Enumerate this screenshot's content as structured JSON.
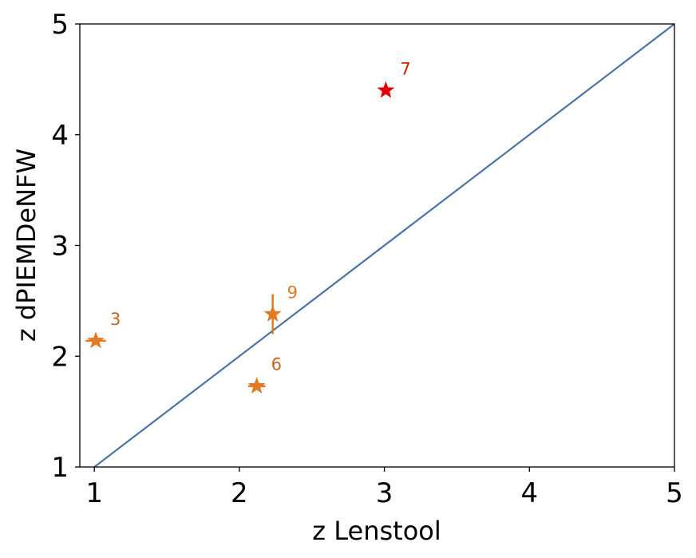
{
  "chart_data": {
    "type": "scatter",
    "xlabel": "z Lenstool",
    "ylabel": "z dPIEMDeNFW",
    "xlim": [
      0.9,
      5
    ],
    "ylim": [
      1,
      5
    ],
    "x_ticks": [
      "1",
      "2",
      "3",
      "4",
      "5"
    ],
    "y_ticks": [
      "1",
      "2",
      "3",
      "4",
      "5"
    ],
    "grid": false,
    "legend": "none",
    "reference_line": {
      "from": [
        1,
        1
      ],
      "to": [
        5,
        5
      ],
      "color": "#4a74a8"
    },
    "points": [
      {
        "id": "3",
        "label": "3",
        "x": 1.01,
        "y": 2.14,
        "xerr": 0.07,
        "yerr": 0.0,
        "color": "#e07b24",
        "label_color": "#c8621a"
      },
      {
        "id": "6",
        "label": "6",
        "x": 2.12,
        "y": 1.73,
        "xerr": 0.06,
        "yerr": 0.0,
        "color": "#e07b24",
        "label_color": "#c8621a"
      },
      {
        "id": "9",
        "label": "9",
        "x": 2.23,
        "y": 2.38,
        "xerr": 0.0,
        "yerr": 0.18,
        "color": "#e07b24",
        "label_color": "#e07b24"
      },
      {
        "id": "7",
        "label": "7",
        "x": 3.01,
        "y": 4.4,
        "xerr": 0.0,
        "yerr": 0.0,
        "color": "#e00000",
        "label_color": "#d41a00"
      }
    ]
  }
}
